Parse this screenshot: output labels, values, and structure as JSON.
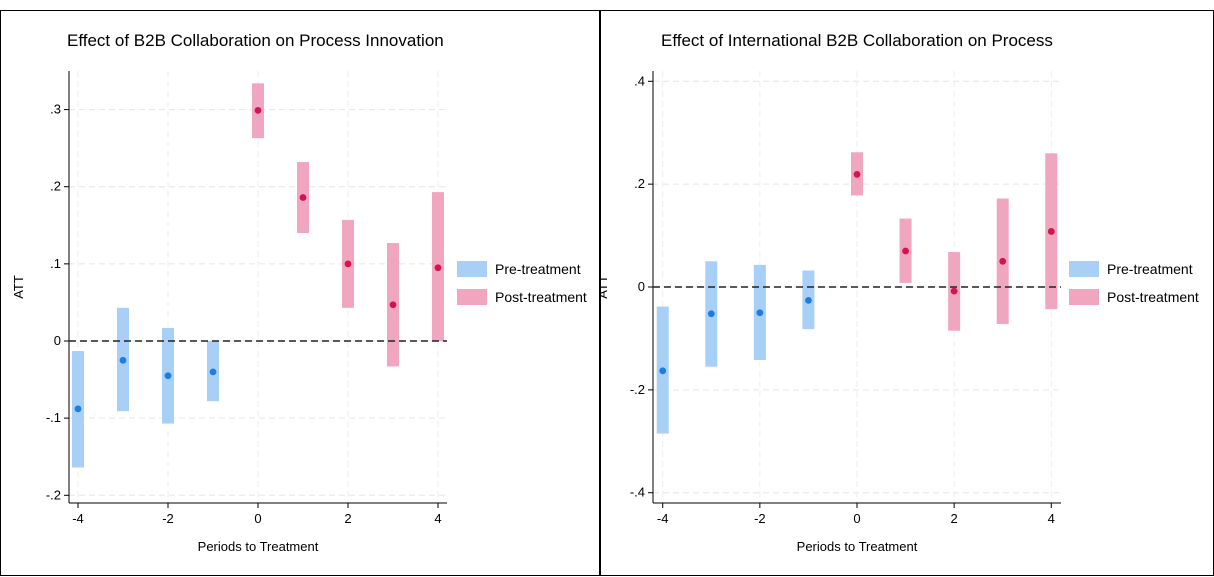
{
  "chart_data": [
    {
      "type": "scatter",
      "title": "Effect of B2B Collaboration on Process Innovation",
      "xlabel": "Periods to Treatment",
      "ylabel": "ATT",
      "xlim": [
        -4.2,
        4.2
      ],
      "ylim": [
        -0.21,
        0.35
      ],
      "xticks": [
        -4,
        -2,
        0,
        2,
        4
      ],
      "xtick_labels": [
        "-4",
        "-2",
        "0",
        "2",
        "4"
      ],
      "yticks": [
        -0.2,
        -0.1,
        0,
        0.1,
        0.2,
        0.3
      ],
      "ytick_labels": [
        "-.2",
        "-.1",
        "0",
        ".1",
        ".2",
        ".3"
      ],
      "grid": true,
      "reference_line": 0,
      "legend_placement": "right",
      "series": [
        {
          "name": "Pre-treatment",
          "color": "#a8cff5",
          "point_color": "#1f7de0",
          "x": [
            -4,
            -3,
            -2,
            -1
          ],
          "y": [
            -0.088,
            -0.025,
            -0.045,
            -0.04
          ],
          "ci_low": [
            -0.164,
            -0.091,
            -0.107,
            -0.078
          ],
          "ci_high": [
            -0.013,
            0.043,
            0.017,
            0.0
          ]
        },
        {
          "name": "Post-treatment",
          "color": "#f0a6bf",
          "point_color": "#d4144f",
          "x": [
            0,
            1,
            2,
            3,
            4
          ],
          "y": [
            0.299,
            0.186,
            0.1,
            0.047,
            0.095
          ],
          "ci_low": [
            0.263,
            0.14,
            0.043,
            -0.033,
            0.0
          ],
          "ci_high": [
            0.334,
            0.232,
            0.157,
            0.127,
            0.193
          ]
        }
      ]
    },
    {
      "type": "scatter",
      "title": "Effect of International B2B Collaboration on Process",
      "xlabel": "Periods to Treatment",
      "ylabel": "ATT",
      "xlim": [
        -4.2,
        4.2
      ],
      "ylim": [
        -0.42,
        0.42
      ],
      "xticks": [
        -4,
        -2,
        0,
        2,
        4
      ],
      "xtick_labels": [
        "-4",
        "-2",
        "0",
        "2",
        "4"
      ],
      "yticks": [
        -0.4,
        -0.2,
        0,
        0.2,
        0.4
      ],
      "ytick_labels": [
        "-.4",
        "-.2",
        "0",
        ".2",
        ".4"
      ],
      "grid": true,
      "reference_line": 0,
      "legend_placement": "right",
      "series": [
        {
          "name": "Pre-treatment",
          "color": "#a8cff5",
          "point_color": "#1f7de0",
          "x": [
            -4,
            -3,
            -2,
            -1
          ],
          "y": [
            -0.163,
            -0.052,
            -0.05,
            -0.026
          ],
          "ci_low": [
            -0.285,
            -0.155,
            -0.142,
            -0.082
          ],
          "ci_high": [
            -0.038,
            0.05,
            0.043,
            0.032
          ]
        },
        {
          "name": "Post-treatment",
          "color": "#f0a6bf",
          "point_color": "#d4144f",
          "x": [
            0,
            1,
            2,
            3,
            4
          ],
          "y": [
            0.219,
            0.07,
            -0.008,
            0.05,
            0.108
          ],
          "ci_low": [
            0.178,
            0.008,
            -0.085,
            -0.072,
            -0.043
          ],
          "ci_high": [
            0.262,
            0.133,
            0.068,
            0.172,
            0.26
          ]
        }
      ]
    }
  ]
}
